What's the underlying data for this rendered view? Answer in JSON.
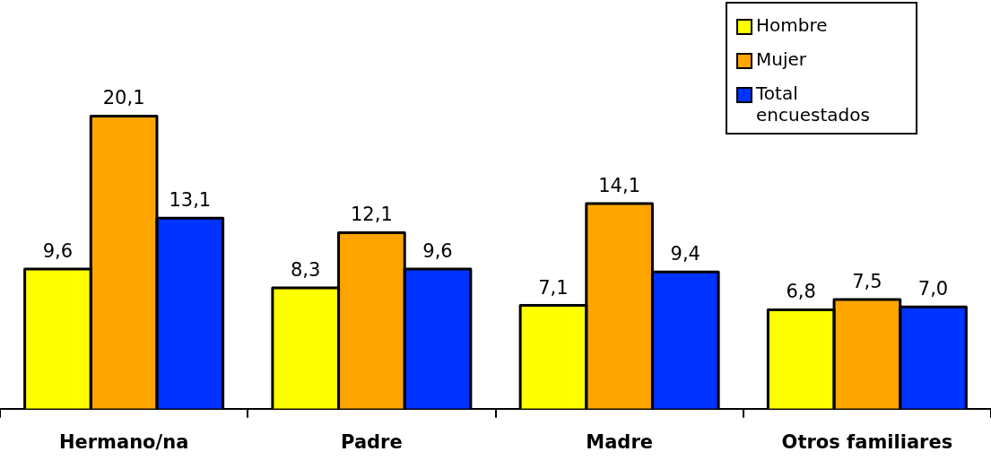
{
  "chart_data": {
    "type": "bar",
    "categories": [
      "Hermano/na",
      "Padre",
      "Madre",
      "Otros familiares"
    ],
    "series": [
      {
        "name": "Hombre",
        "color": "#ffff00",
        "values": [
          9.6,
          8.3,
          7.1,
          6.8
        ],
        "value_labels": [
          "9,6",
          "8,3",
          "7,1",
          "6,8"
        ]
      },
      {
        "name": "Mujer",
        "color": "#ffa500",
        "values": [
          20.1,
          12.1,
          14.1,
          7.5
        ],
        "value_labels": [
          "20,1",
          "12,1",
          "14,1",
          "7,5"
        ]
      },
      {
        "name": "Total encuestados",
        "color": "#0033ff",
        "values": [
          13.1,
          9.6,
          9.4,
          7.0
        ],
        "value_labels": [
          "13,1",
          "9,6",
          "9,4",
          "7,0"
        ]
      }
    ],
    "grid": false,
    "legend": "top right"
  }
}
